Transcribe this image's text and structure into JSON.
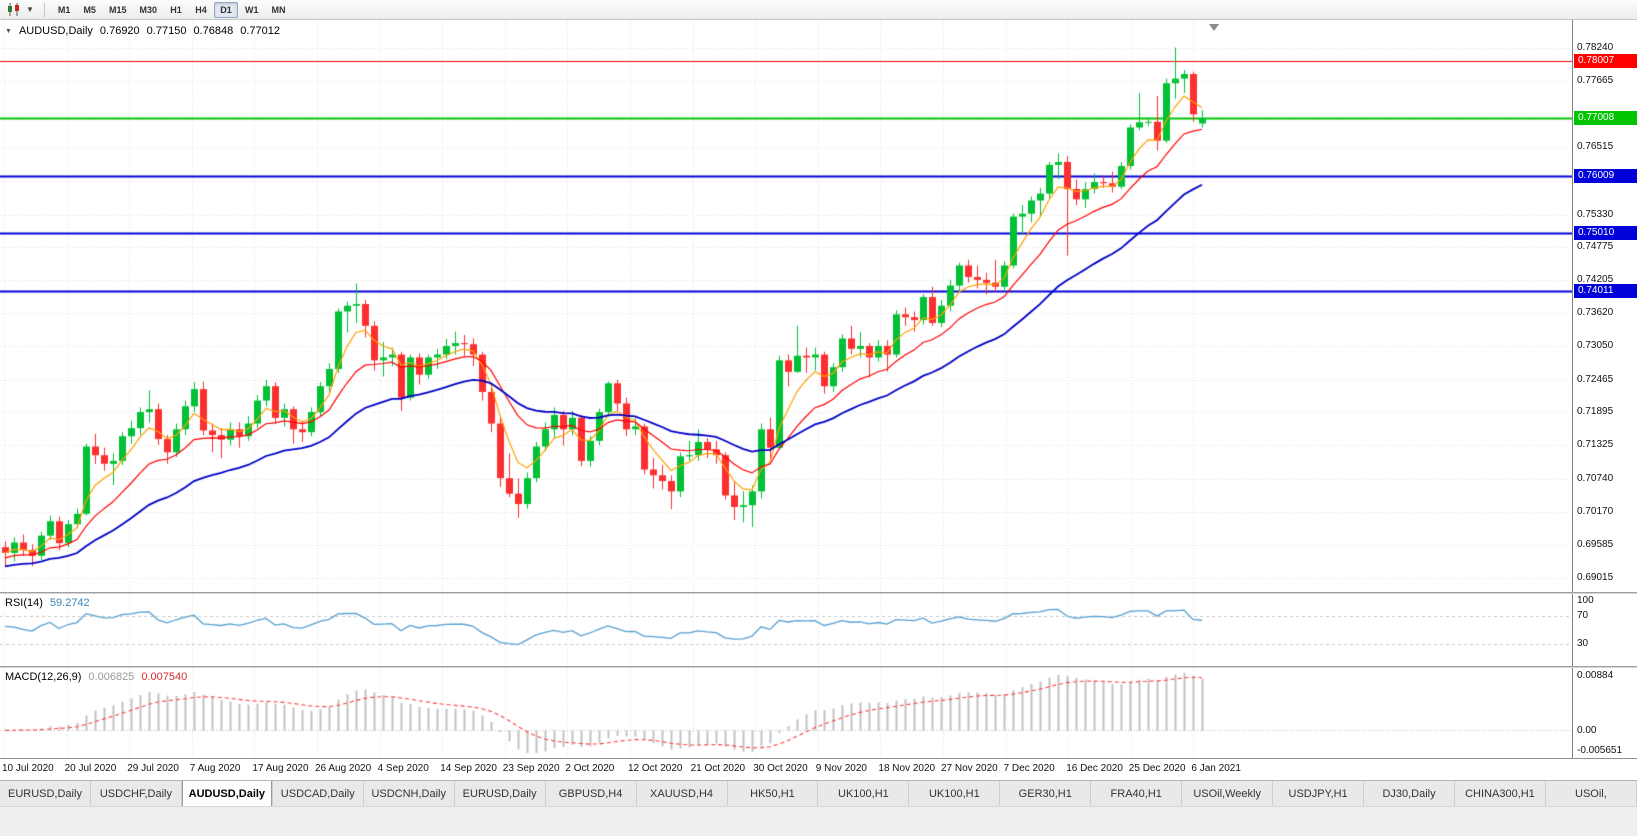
{
  "toolbar": {
    "timeframes": [
      "M1",
      "M5",
      "M15",
      "M30",
      "H1",
      "H4",
      "D1",
      "W1",
      "MN"
    ],
    "active_timeframe": "D1"
  },
  "tabs": {
    "active_index": 2,
    "items": [
      "EURUSD,Daily",
      "USDCHF,Daily",
      "AUDUSD,Daily",
      "USDCAD,Daily",
      "USDCNH,Daily",
      "EURUSD,Daily",
      "GBPUSD,H4",
      "XAUUSD,H4",
      "HK50,H1",
      "UK100,H1",
      "UK100,H1",
      "GER30,H1",
      "FRA40,H1",
      "USOil,Weekly",
      "USDJPY,H1",
      "DJ30,Daily",
      "CHINA300,H1",
      "USOil,"
    ]
  },
  "colors": {
    "chart_background": "#ffffff",
    "grid": "#e4e4e4"
  },
  "chart_data": {
    "type": "candlestick",
    "title": "AUDUSD,Daily",
    "ohlc_display": {
      "open": "0.76920",
      "high": "0.77150",
      "low": "0.76848",
      "close": "0.77012"
    },
    "ylim": [
      0.6877,
      0.7872
    ],
    "candle_up_color": "#00c135",
    "candle_down_color": "#fc2f2f",
    "price_ticks": [
      {
        "label": "0.78240",
        "price": 0.7824
      },
      {
        "label": "0.77665",
        "price": 0.77665
      },
      {
        "label": "0.76515",
        "price": 0.76515
      },
      {
        "label": "0.75330",
        "price": 0.7533
      },
      {
        "label": "0.74775",
        "price": 0.74775
      },
      {
        "label": "0.74205",
        "price": 0.74205
      },
      {
        "label": "0.73620",
        "price": 0.7362
      },
      {
        "label": "0.73050",
        "price": 0.7305
      },
      {
        "label": "0.72465",
        "price": 0.72465
      },
      {
        "label": "0.71895",
        "price": 0.71895
      },
      {
        "label": "0.71325",
        "price": 0.71325
      },
      {
        "label": "0.70740",
        "price": 0.7074
      },
      {
        "label": "0.70170",
        "price": 0.7017
      },
      {
        "label": "0.69585",
        "price": 0.69585
      },
      {
        "label": "0.69015",
        "price": 0.69015
      }
    ],
    "grid_extra_prices": [
      0.7709,
      0.7592
    ],
    "horizontal_lines": [
      {
        "label": "0.78007",
        "price": 0.78007,
        "color": "#ff0000",
        "width": 1
      },
      {
        "label": "0.77008",
        "price": 0.77008,
        "color": "#00c400",
        "width": 2
      },
      {
        "label": "0.76009",
        "price": 0.76009,
        "color": "#0000d8",
        "width": 2
      },
      {
        "label": "0.75010",
        "price": 0.7501,
        "color": "#0000d8",
        "width": 2
      },
      {
        "label": "0.74011",
        "price": 0.74011,
        "color": "#0000d8",
        "width": 2
      }
    ],
    "x_labels": [
      "10 Jul 2020",
      "20 Jul 2020",
      "29 Jul 2020",
      "7 Aug 2020",
      "17 Aug 2020",
      "26 Aug 2020",
      "4 Sep 2020",
      "14 Sep 2020",
      "23 Sep 2020",
      "2 Oct 2020",
      "12 Oct 2020",
      "21 Oct 2020",
      "30 Oct 2020",
      "9 Nov 2020",
      "18 Nov 2020",
      "27 Nov 2020",
      "7 Dec 2020",
      "16 Dec 2020",
      "25 Dec 2020",
      "6 Jan 2021"
    ],
    "moving_averages": [
      {
        "name": "fast-ma",
        "period": 5,
        "color": "#ffa000",
        "width": 1.2
      },
      {
        "name": "medium-ma",
        "period": 13,
        "color": "#ff0000",
        "width": 1.2
      },
      {
        "name": "slow-ma",
        "period": 30,
        "color": "#0000c8",
        "width": 1.8
      }
    ],
    "rsi": {
      "label": "RSI(14)",
      "value": "59.2742",
      "period": 14,
      "range": [
        0,
        100
      ],
      "levels": [
        70,
        30
      ],
      "axis_labels": [
        {
          "text": "100",
          "value": 100
        },
        {
          "text": "70",
          "value": 70
        },
        {
          "text": "30",
          "value": 30
        }
      ],
      "color": "#55a0d0"
    },
    "macd": {
      "label": "MACD(12,26,9)",
      "macd_value": "0.006825",
      "signal_value": "0.007540",
      "fast": 12,
      "slow": 26,
      "signal": 9,
      "axis_top_label": "0.00884",
      "axis_zero_label": "0.00",
      "axis_bottom_label": "-0.005651",
      "hist_color": "#c2c2c2",
      "signal_color": "#ff4040"
    },
    "candles": [
      [
        0.6955,
        0.6965,
        0.6921,
        0.6945
      ],
      [
        0.6945,
        0.6972,
        0.693,
        0.6963
      ],
      [
        0.6963,
        0.6977,
        0.694,
        0.695
      ],
      [
        0.695,
        0.696,
        0.6922,
        0.694
      ],
      [
        0.694,
        0.6982,
        0.6933,
        0.6975
      ],
      [
        0.6975,
        0.701,
        0.6968,
        0.7
      ],
      [
        0.7,
        0.7008,
        0.695,
        0.6962
      ],
      [
        0.6962,
        0.7002,
        0.6955,
        0.6995
      ],
      [
        0.6995,
        0.7022,
        0.6988,
        0.7013
      ],
      [
        0.7013,
        0.7135,
        0.701,
        0.713
      ],
      [
        0.713,
        0.7152,
        0.71,
        0.7115
      ],
      [
        0.7115,
        0.7128,
        0.7088,
        0.71
      ],
      [
        0.71,
        0.7118,
        0.7063,
        0.7105
      ],
      [
        0.7105,
        0.7155,
        0.7098,
        0.7148
      ],
      [
        0.7148,
        0.7175,
        0.7135,
        0.7162
      ],
      [
        0.7162,
        0.7198,
        0.715,
        0.719
      ],
      [
        0.719,
        0.7228,
        0.7172,
        0.7195
      ],
      [
        0.7195,
        0.7205,
        0.7133,
        0.7143
      ],
      [
        0.7143,
        0.715,
        0.71,
        0.712
      ],
      [
        0.712,
        0.717,
        0.7112,
        0.716
      ],
      [
        0.716,
        0.721,
        0.715,
        0.72
      ],
      [
        0.72,
        0.7242,
        0.719,
        0.723
      ],
      [
        0.723,
        0.7243,
        0.715,
        0.7158
      ],
      [
        0.7158,
        0.717,
        0.712,
        0.715
      ],
      [
        0.715,
        0.7162,
        0.711,
        0.7142
      ],
      [
        0.7142,
        0.7172,
        0.7132,
        0.716
      ],
      [
        0.716,
        0.7172,
        0.7128,
        0.7148
      ],
      [
        0.7148,
        0.7183,
        0.714,
        0.717
      ],
      [
        0.717,
        0.722,
        0.7162,
        0.721
      ],
      [
        0.721,
        0.7246,
        0.72,
        0.7235
      ],
      [
        0.7235,
        0.7242,
        0.717,
        0.718
      ],
      [
        0.718,
        0.7205,
        0.7165,
        0.7195
      ],
      [
        0.7195,
        0.72,
        0.7135,
        0.716
      ],
      [
        0.716,
        0.7175,
        0.7138,
        0.7155
      ],
      [
        0.7155,
        0.7198,
        0.7148,
        0.719
      ],
      [
        0.719,
        0.7242,
        0.7182,
        0.7235
      ],
      [
        0.7235,
        0.7275,
        0.7222,
        0.7265
      ],
      [
        0.7265,
        0.737,
        0.7258,
        0.7365
      ],
      [
        0.7365,
        0.7382,
        0.7328,
        0.7375
      ],
      [
        0.7375,
        0.7414,
        0.7345,
        0.7378
      ],
      [
        0.7378,
        0.7385,
        0.732,
        0.734
      ],
      [
        0.734,
        0.7348,
        0.7262,
        0.728
      ],
      [
        0.728,
        0.7312,
        0.7252,
        0.7285
      ],
      [
        0.7285,
        0.7302,
        0.727,
        0.729
      ],
      [
        0.729,
        0.7295,
        0.7192,
        0.7215
      ],
      [
        0.7215,
        0.729,
        0.721,
        0.7285
      ],
      [
        0.7285,
        0.7292,
        0.7238,
        0.7255
      ],
      [
        0.7255,
        0.729,
        0.7248,
        0.7285
      ],
      [
        0.7285,
        0.73,
        0.7265,
        0.729
      ],
      [
        0.729,
        0.7317,
        0.7282,
        0.7305
      ],
      [
        0.7305,
        0.733,
        0.729,
        0.731
      ],
      [
        0.731,
        0.7324,
        0.7288,
        0.7308
      ],
      [
        0.7308,
        0.7318,
        0.727,
        0.729
      ],
      [
        0.729,
        0.7295,
        0.721,
        0.7225
      ],
      [
        0.7225,
        0.724,
        0.7155,
        0.717
      ],
      [
        0.717,
        0.718,
        0.706,
        0.7075
      ],
      [
        0.7075,
        0.7118,
        0.7042,
        0.7048
      ],
      [
        0.7048,
        0.7075,
        0.7006,
        0.703
      ],
      [
        0.703,
        0.7085,
        0.7022,
        0.7075
      ],
      [
        0.7075,
        0.7138,
        0.7068,
        0.713
      ],
      [
        0.713,
        0.7172,
        0.7122,
        0.716
      ],
      [
        0.716,
        0.7198,
        0.7145,
        0.7185
      ],
      [
        0.7185,
        0.7192,
        0.7132,
        0.716
      ],
      [
        0.716,
        0.7192,
        0.715,
        0.718
      ],
      [
        0.718,
        0.7185,
        0.7096,
        0.7105
      ],
      [
        0.7105,
        0.7148,
        0.7095,
        0.714
      ],
      [
        0.714,
        0.7196,
        0.7132,
        0.719
      ],
      [
        0.719,
        0.7243,
        0.7182,
        0.724
      ],
      [
        0.724,
        0.7246,
        0.7192,
        0.7205
      ],
      [
        0.7205,
        0.7215,
        0.7148,
        0.716
      ],
      [
        0.716,
        0.718,
        0.715,
        0.7165
      ],
      [
        0.7165,
        0.717,
        0.7082,
        0.709
      ],
      [
        0.709,
        0.711,
        0.7057,
        0.708
      ],
      [
        0.708,
        0.7098,
        0.7055,
        0.707
      ],
      [
        0.707,
        0.708,
        0.7021,
        0.7052
      ],
      [
        0.7052,
        0.712,
        0.7042,
        0.7113
      ],
      [
        0.7113,
        0.714,
        0.7105,
        0.7115
      ],
      [
        0.7115,
        0.716,
        0.7105,
        0.7138
      ],
      [
        0.7138,
        0.7145,
        0.711,
        0.7125
      ],
      [
        0.7125,
        0.714,
        0.71,
        0.7115
      ],
      [
        0.7115,
        0.712,
        0.7038,
        0.7045
      ],
      [
        0.7045,
        0.707,
        0.7002,
        0.7025
      ],
      [
        0.7025,
        0.7052,
        0.6998,
        0.7028
      ],
      [
        0.7028,
        0.7062,
        0.699,
        0.7052
      ],
      [
        0.7052,
        0.717,
        0.704,
        0.716
      ],
      [
        0.716,
        0.718,
        0.7108,
        0.7128
      ],
      [
        0.7128,
        0.7288,
        0.7125,
        0.728
      ],
      [
        0.728,
        0.729,
        0.7235,
        0.726
      ],
      [
        0.726,
        0.734,
        0.7258,
        0.7288
      ],
      [
        0.7288,
        0.7302,
        0.7258,
        0.7285
      ],
      [
        0.7285,
        0.7302,
        0.7262,
        0.729
      ],
      [
        0.729,
        0.7295,
        0.7222,
        0.7235
      ],
      [
        0.7235,
        0.7275,
        0.7225,
        0.7268
      ],
      [
        0.7268,
        0.7325,
        0.726,
        0.7318
      ],
      [
        0.7318,
        0.734,
        0.729,
        0.73
      ],
      [
        0.73,
        0.7329,
        0.7285,
        0.7305
      ],
      [
        0.7305,
        0.731,
        0.725,
        0.7285
      ],
      [
        0.7285,
        0.7315,
        0.7278,
        0.7305
      ],
      [
        0.7305,
        0.7315,
        0.726,
        0.729
      ],
      [
        0.729,
        0.7367,
        0.7285,
        0.736
      ],
      [
        0.736,
        0.7372,
        0.734,
        0.7355
      ],
      [
        0.7355,
        0.7365,
        0.733,
        0.735
      ],
      [
        0.735,
        0.7395,
        0.7342,
        0.739
      ],
      [
        0.739,
        0.7408,
        0.734,
        0.7345
      ],
      [
        0.7345,
        0.7385,
        0.7338,
        0.7375
      ],
      [
        0.7375,
        0.742,
        0.7365,
        0.741
      ],
      [
        0.741,
        0.745,
        0.74,
        0.7445
      ],
      [
        0.7445,
        0.7455,
        0.7415,
        0.7425
      ],
      [
        0.7425,
        0.7445,
        0.7405,
        0.742
      ],
      [
        0.742,
        0.7432,
        0.7395,
        0.7415
      ],
      [
        0.7415,
        0.7455,
        0.7398,
        0.7408
      ],
      [
        0.7408,
        0.7452,
        0.74,
        0.7445
      ],
      [
        0.7445,
        0.7535,
        0.744,
        0.753
      ],
      [
        0.753,
        0.755,
        0.75,
        0.7535
      ],
      [
        0.7535,
        0.7565,
        0.752,
        0.7558
      ],
      [
        0.7558,
        0.758,
        0.753,
        0.757
      ],
      [
        0.757,
        0.7625,
        0.7562,
        0.762
      ],
      [
        0.762,
        0.764,
        0.7595,
        0.7625
      ],
      [
        0.7625,
        0.7635,
        0.7462,
        0.7578
      ],
      [
        0.7578,
        0.7595,
        0.755,
        0.756
      ],
      [
        0.756,
        0.759,
        0.7545,
        0.7578
      ],
      [
        0.7578,
        0.7605,
        0.757,
        0.759
      ],
      [
        0.759,
        0.76,
        0.758,
        0.7588
      ],
      [
        0.7588,
        0.7608,
        0.7572,
        0.7582
      ],
      [
        0.7582,
        0.7625,
        0.7578,
        0.7618
      ],
      [
        0.7618,
        0.769,
        0.7612,
        0.7685
      ],
      [
        0.7685,
        0.7745,
        0.768,
        0.7694
      ],
      [
        0.7694,
        0.7702,
        0.7688,
        0.7695
      ],
      [
        0.7695,
        0.774,
        0.7645,
        0.7662
      ],
      [
        0.7662,
        0.777,
        0.7658,
        0.7762
      ],
      [
        0.7762,
        0.7824,
        0.7735,
        0.777
      ],
      [
        0.777,
        0.7785,
        0.7745,
        0.7778
      ],
      [
        0.7778,
        0.7782,
        0.7695,
        0.7708
      ],
      [
        0.7692,
        0.7715,
        0.76848,
        0.77012
      ]
    ]
  }
}
